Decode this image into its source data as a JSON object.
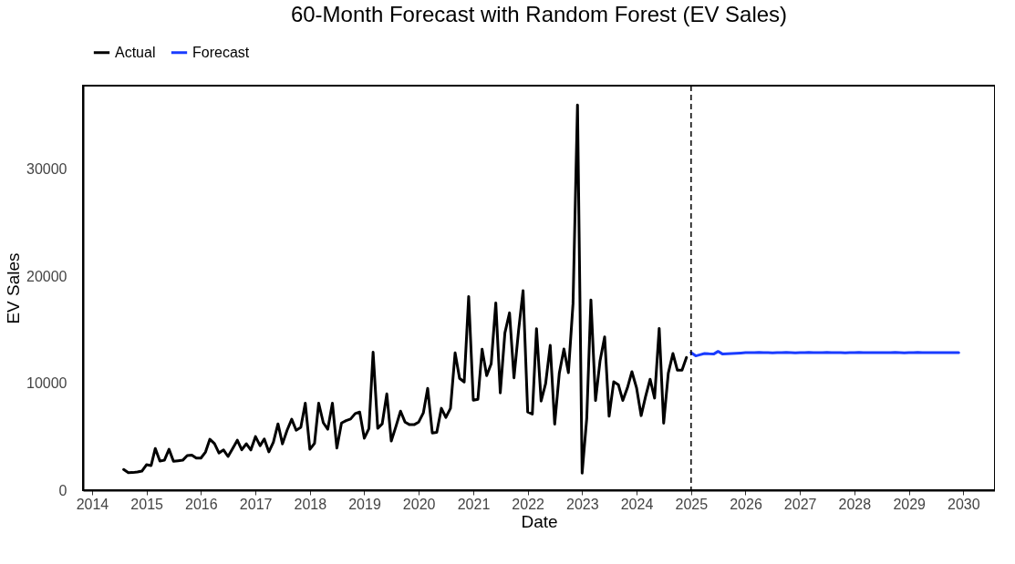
{
  "chart_data": {
    "type": "line",
    "title": "60-Month Forecast with Random Forest (EV Sales)",
    "xlabel": "Date",
    "ylabel": "EV Sales",
    "xlim": [
      "2013-11",
      "2030-08"
    ],
    "xticks": [
      "2014",
      "2015",
      "2016",
      "2017",
      "2018",
      "2019",
      "2020",
      "2021",
      "2022",
      "2023",
      "2024",
      "2025",
      "2026",
      "2027",
      "2028",
      "2029",
      "2030"
    ],
    "ylim": [
      0,
      37800
    ],
    "yticks": [
      0,
      10000,
      20000,
      30000
    ],
    "grid": false,
    "legend": "top",
    "ref_lines": [
      {
        "axis": "x",
        "value": "2025-01",
        "label": null,
        "color": "#000000",
        "line_style": "dashed"
      }
    ],
    "series": [
      {
        "name": "Actual",
        "color": "#000000",
        "x": [
          "2014-08",
          "2014-09",
          "2014-10",
          "2014-11",
          "2014-12",
          "2015-01",
          "2015-02",
          "2015-03",
          "2015-04",
          "2015-05",
          "2015-06",
          "2015-07",
          "2015-08",
          "2015-09",
          "2015-10",
          "2015-11",
          "2015-12",
          "2016-01",
          "2016-02",
          "2016-03",
          "2016-04",
          "2016-05",
          "2016-06",
          "2016-07",
          "2016-08",
          "2016-09",
          "2016-10",
          "2016-11",
          "2016-12",
          "2017-01",
          "2017-02",
          "2017-03",
          "2017-04",
          "2017-05",
          "2017-06",
          "2017-07",
          "2017-08",
          "2017-09",
          "2017-10",
          "2017-11",
          "2017-12",
          "2018-01",
          "2018-02",
          "2018-03",
          "2018-04",
          "2018-05",
          "2018-06",
          "2018-07",
          "2018-08",
          "2018-09",
          "2018-10",
          "2018-11",
          "2018-12",
          "2019-01",
          "2019-02",
          "2019-03",
          "2019-04",
          "2019-05",
          "2019-06",
          "2019-07",
          "2019-08",
          "2019-09",
          "2019-10",
          "2019-11",
          "2019-12",
          "2020-01",
          "2020-02",
          "2020-03",
          "2020-04",
          "2020-05",
          "2020-06",
          "2020-07",
          "2020-08",
          "2020-09",
          "2020-10",
          "2020-11",
          "2020-12",
          "2021-01",
          "2021-02",
          "2021-03",
          "2021-04",
          "2021-05",
          "2021-06",
          "2021-07",
          "2021-08",
          "2021-09",
          "2021-10",
          "2021-11",
          "2021-12",
          "2022-01",
          "2022-02",
          "2022-03",
          "2022-04",
          "2022-05",
          "2022-06",
          "2022-07",
          "2022-08",
          "2022-09",
          "2022-10",
          "2022-11",
          "2022-12",
          "2023-01",
          "2023-02",
          "2023-03",
          "2023-04",
          "2023-05",
          "2023-06",
          "2023-07",
          "2023-08",
          "2023-09",
          "2023-10",
          "2023-11",
          "2023-12",
          "2024-01",
          "2024-02",
          "2024-03",
          "2024-04",
          "2024-05",
          "2024-06",
          "2024-07",
          "2024-08",
          "2024-09",
          "2024-10",
          "2024-11",
          "2024-12"
        ],
        "values": [
          1930,
          1640,
          1650,
          1700,
          1780,
          2380,
          2300,
          3900,
          2720,
          2800,
          3820,
          2700,
          2750,
          2800,
          3230,
          3280,
          3000,
          3000,
          3570,
          4760,
          4350,
          3480,
          3760,
          3150,
          3900,
          4670,
          3770,
          4340,
          3760,
          5010,
          4160,
          4790,
          3580,
          4480,
          6200,
          4330,
          5600,
          6630,
          5600,
          5870,
          8130,
          3820,
          4380,
          8130,
          6300,
          5700,
          8130,
          3930,
          6280,
          6500,
          6650,
          7160,
          7300,
          4860,
          5760,
          12900,
          5780,
          6200,
          9000,
          4590,
          5950,
          7390,
          6370,
          6120,
          6120,
          6370,
          7220,
          9520,
          5350,
          5400,
          7650,
          6800,
          7650,
          12830,
          10450,
          10110,
          18100,
          8410,
          8500,
          13170,
          10710,
          11810,
          17500,
          9090,
          14700,
          16570,
          10500,
          14950,
          18650,
          7310,
          7110,
          15100,
          8330,
          9940,
          13530,
          6170,
          10930,
          13200,
          10990,
          17440,
          36000,
          1590,
          6710,
          17780,
          8380,
          12060,
          14330,
          6910,
          10140,
          9860,
          8380,
          9570,
          11070,
          9570,
          6970,
          8720,
          10370,
          8610,
          15120,
          6260,
          10930,
          12770,
          11210,
          11210,
          12400
        ]
      },
      {
        "name": "Forecast",
        "color": "#1a3cff",
        "x": [
          "2025-01",
          "2025-02",
          "2025-03",
          "2025-04",
          "2025-05",
          "2025-06",
          "2025-07",
          "2025-08",
          "2025-09",
          "2025-10",
          "2025-11",
          "2025-12",
          "2026-01",
          "2026-02",
          "2026-03",
          "2026-04",
          "2026-05",
          "2026-06",
          "2026-07",
          "2026-08",
          "2026-09",
          "2026-10",
          "2026-11",
          "2026-12",
          "2027-01",
          "2027-02",
          "2027-03",
          "2027-04",
          "2027-05",
          "2027-06",
          "2027-07",
          "2027-08",
          "2027-09",
          "2027-10",
          "2027-11",
          "2027-12",
          "2028-01",
          "2028-02",
          "2028-03",
          "2028-04",
          "2028-05",
          "2028-06",
          "2028-07",
          "2028-08",
          "2028-09",
          "2028-10",
          "2028-11",
          "2028-12",
          "2029-01",
          "2029-02",
          "2029-03",
          "2029-04",
          "2029-05",
          "2029-06",
          "2029-07",
          "2029-08",
          "2029-09",
          "2029-10",
          "2029-11",
          "2029-12"
        ],
        "values": [
          12860,
          12550,
          12650,
          12770,
          12740,
          12720,
          12970,
          12720,
          12750,
          12780,
          12800,
          12820,
          12850,
          12860,
          12850,
          12870,
          12860,
          12850,
          12840,
          12860,
          12850,
          12870,
          12860,
          12840,
          12860,
          12850,
          12870,
          12860,
          12850,
          12860,
          12870,
          12850,
          12860,
          12860,
          12840,
          12860,
          12850,
          12870,
          12860,
          12850,
          12860,
          12860,
          12850,
          12860,
          12850,
          12870,
          12860,
          12840,
          12860,
          12850,
          12870,
          12860,
          12850,
          12860,
          12860,
          12850,
          12860,
          12860,
          12860,
          12860
        ]
      }
    ]
  }
}
